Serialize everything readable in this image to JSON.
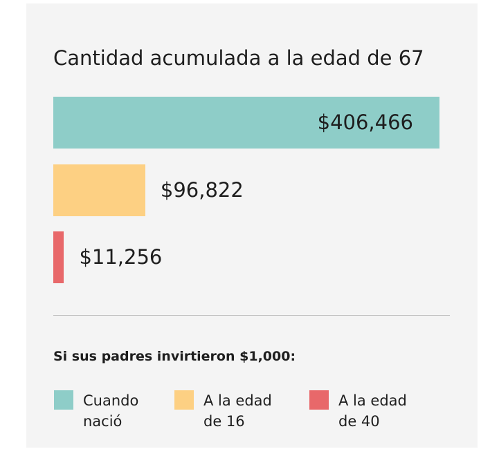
{
  "chart_data": {
    "type": "bar",
    "orientation": "horizontal",
    "title": "Cantidad acumulada a la edad de 67",
    "categories": [
      "Cuando nació",
      "A la edad de 16",
      "A la edad de 40"
    ],
    "values": [
      406466,
      96822,
      11256
    ],
    "value_labels": [
      "$406,466",
      "$96,822",
      "$11,256"
    ],
    "colors": [
      "#8ecdc8",
      "#fdd083",
      "#e8686a"
    ],
    "legend_title": "Si sus padres invirtieron $1,000:",
    "legend": "bottom"
  }
}
